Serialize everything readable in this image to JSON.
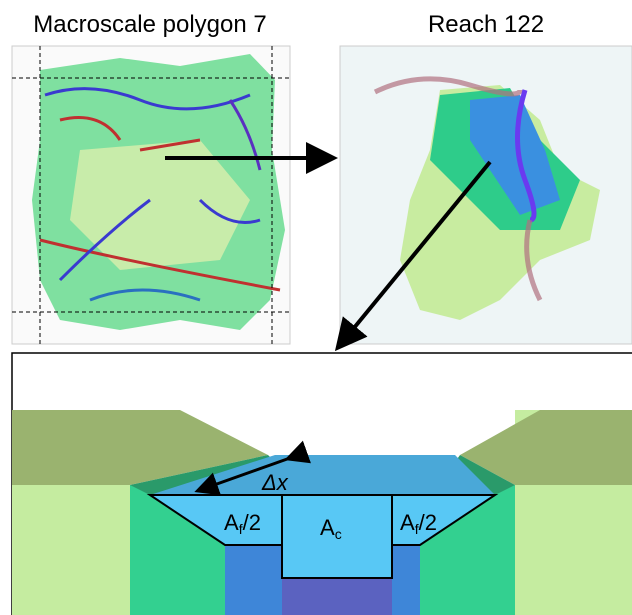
{
  "panels": {
    "left_title": "Macroscale polygon 7",
    "right_title": "Reach 122"
  },
  "cross_section": {
    "length_label": "Δx",
    "labels": [
      {
        "main": "A",
        "sub": "f",
        "tail": "/2"
      },
      {
        "main": "A",
        "sub": "c"
      },
      {
        "main": "A",
        "sub": "f",
        "tail": "/2"
      }
    ]
  }
}
